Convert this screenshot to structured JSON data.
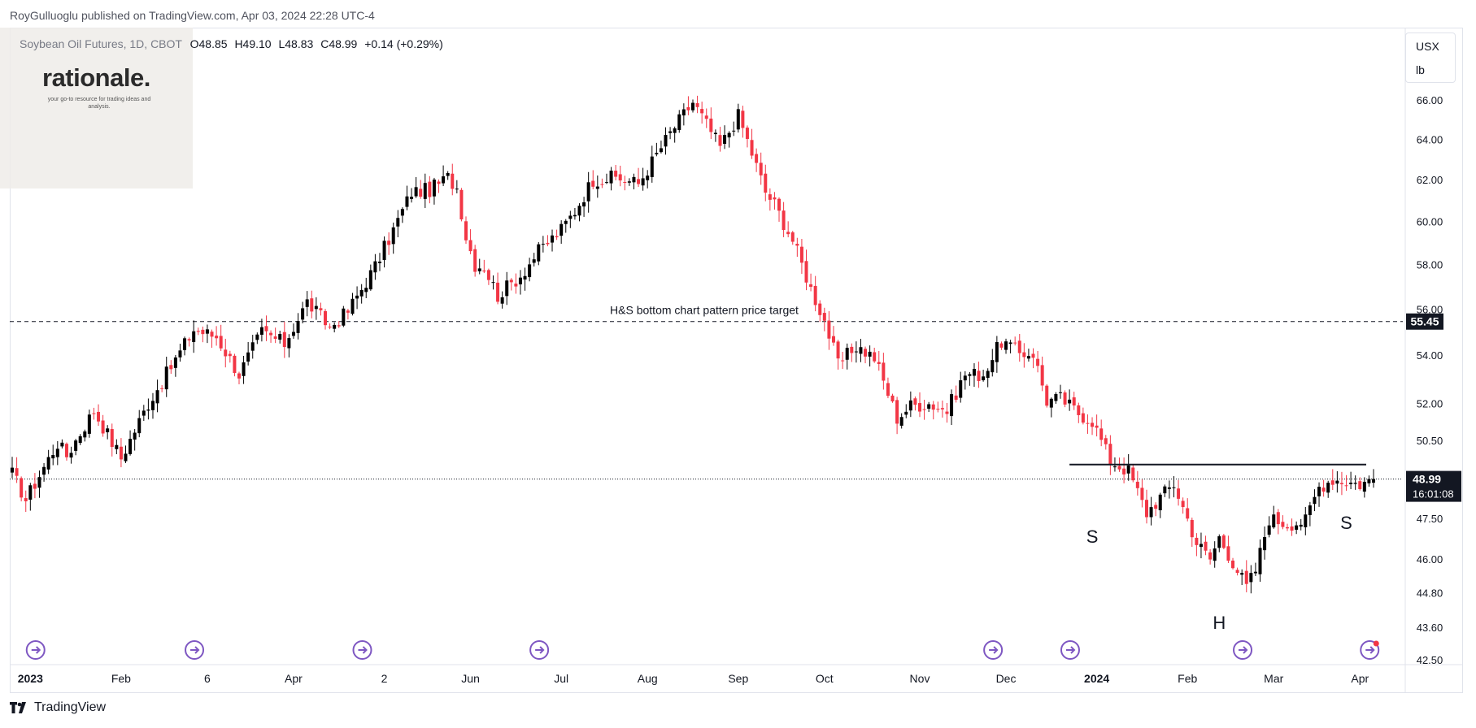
{
  "header": {
    "publisher_text": "RoyGulluoglu published on TradingView.com, Apr 03, 2024 22:28 UTC-4"
  },
  "legend": {
    "symbol": "Soybean Oil Futures, 1D, CBOT",
    "open": "O48.85",
    "high": "H49.10",
    "low": "L48.83",
    "close": "C48.99",
    "change": "+0.14 (+0.29%)"
  },
  "watermark": {
    "logo": "rationale.",
    "tagline": "your go-to resource for trading ideas and analysis."
  },
  "unit": {
    "currency": "USX",
    "unit": "lb"
  },
  "footer": {
    "brand": "TradingView"
  },
  "colors": {
    "up": "#000000",
    "down": "#f23645",
    "accent_label_bg": "#131722",
    "event_icon": "#7e57c2"
  },
  "chart_data": {
    "type": "candlestick",
    "y_axis": {
      "scale": "log",
      "range": [
        42.5,
        67.5
      ],
      "ticks": [
        "42.50",
        "43.60",
        "44.80",
        "46.00",
        "47.50",
        "48.99",
        "50.50",
        "52.00",
        "54.00",
        "55.45",
        "56.00",
        "58.00",
        "60.00",
        "62.00",
        "64.00",
        "66.00"
      ]
    },
    "x_axis": {
      "labels": [
        {
          "text": "2023",
          "bold": true,
          "i": 4
        },
        {
          "text": "Feb",
          "i": 24
        },
        {
          "text": "6",
          "i": 43
        },
        {
          "text": "Apr",
          "i": 62
        },
        {
          "text": "2",
          "i": 82
        },
        {
          "text": "Jun",
          "i": 101
        },
        {
          "text": "Jul",
          "i": 121
        },
        {
          "text": "Aug",
          "i": 140
        },
        {
          "text": "Sep",
          "i": 160
        },
        {
          "text": "Oct",
          "i": 179
        },
        {
          "text": "Nov",
          "i": 200
        },
        {
          "text": "Dec",
          "i": 219
        },
        {
          "text": "2024",
          "bold": true,
          "i": 239
        },
        {
          "text": "Feb",
          "i": 259
        },
        {
          "text": "Mar",
          "i": 278
        },
        {
          "text": "Apr",
          "i": 297
        }
      ]
    },
    "path": [
      [
        0,
        49.2
      ],
      [
        3,
        48.2
      ],
      [
        10,
        50.4
      ],
      [
        12,
        49.9
      ],
      [
        18,
        51.7
      ],
      [
        24,
        49.8
      ],
      [
        30,
        52.0
      ],
      [
        35,
        53.5
      ],
      [
        40,
        55.1
      ],
      [
        45,
        54.8
      ],
      [
        50,
        53.2
      ],
      [
        55,
        55.0
      ],
      [
        60,
        54.5
      ],
      [
        65,
        56.3
      ],
      [
        70,
        55.2
      ],
      [
        74,
        55.9
      ],
      [
        80,
        57.9
      ],
      [
        84,
        59.6
      ],
      [
        88,
        61.4
      ],
      [
        92,
        61.5
      ],
      [
        96,
        62.1
      ],
      [
        98,
        61.6
      ],
      [
        100,
        59.3
      ],
      [
        102,
        58.0
      ],
      [
        104,
        57.9
      ],
      [
        107,
        56.6
      ],
      [
        112,
        57.5
      ],
      [
        116,
        58.6
      ],
      [
        121,
        59.6
      ],
      [
        124,
        60.5
      ],
      [
        128,
        62.0
      ],
      [
        133,
        62.1
      ],
      [
        138,
        61.8
      ],
      [
        145,
        64.3
      ],
      [
        150,
        65.9
      ],
      [
        156,
        63.6
      ],
      [
        160,
        65.2
      ],
      [
        166,
        61.4
      ],
      [
        168,
        60.8
      ],
      [
        172,
        59.1
      ],
      [
        176,
        56.9
      ],
      [
        179,
        55.5
      ],
      [
        182,
        53.6
      ],
      [
        186,
        54.4
      ],
      [
        190,
        53.9
      ],
      [
        195,
        51.4
      ],
      [
        198,
        51.9
      ],
      [
        202,
        52.0
      ],
      [
        206,
        51.7
      ],
      [
        210,
        53.2
      ],
      [
        214,
        53.2
      ],
      [
        218,
        54.6
      ],
      [
        222,
        54.1
      ],
      [
        225,
        54.1
      ],
      [
        228,
        52.1
      ],
      [
        231,
        52.2
      ],
      [
        235,
        51.6
      ],
      [
        238,
        51.3
      ],
      [
        242,
        49.7
      ],
      [
        246,
        49.3
      ],
      [
        250,
        47.7
      ],
      [
        253,
        48.3
      ],
      [
        256,
        48.8
      ],
      [
        261,
        46.6
      ],
      [
        264,
        46.0
      ],
      [
        266,
        46.8
      ],
      [
        269,
        45.9
      ],
      [
        272,
        45.0
      ],
      [
        274,
        45.6
      ],
      [
        277,
        47.5
      ],
      [
        281,
        47.3
      ],
      [
        285,
        47.4
      ],
      [
        288,
        48.7
      ],
      [
        291,
        49.0
      ],
      [
        294,
        48.9
      ],
      [
        297,
        48.8
      ],
      [
        300,
        48.99
      ]
    ],
    "candle_count": 301,
    "last_price": "48.99",
    "countdown": "16:01:08",
    "target_price": "55.45",
    "target_annotation": "H&S bottom chart pattern price target",
    "neckline_price": 49.55,
    "neckline_from_i": 233,
    "pattern_labels": [
      {
        "text": "S",
        "i": 238,
        "price": 46.6
      },
      {
        "text": "H",
        "i": 266,
        "price": 43.55
      },
      {
        "text": "S",
        "i": 294,
        "price": 47.1
      }
    ],
    "event_markers_i": [
      3,
      38,
      75,
      114,
      214,
      231,
      269,
      297
    ]
  }
}
